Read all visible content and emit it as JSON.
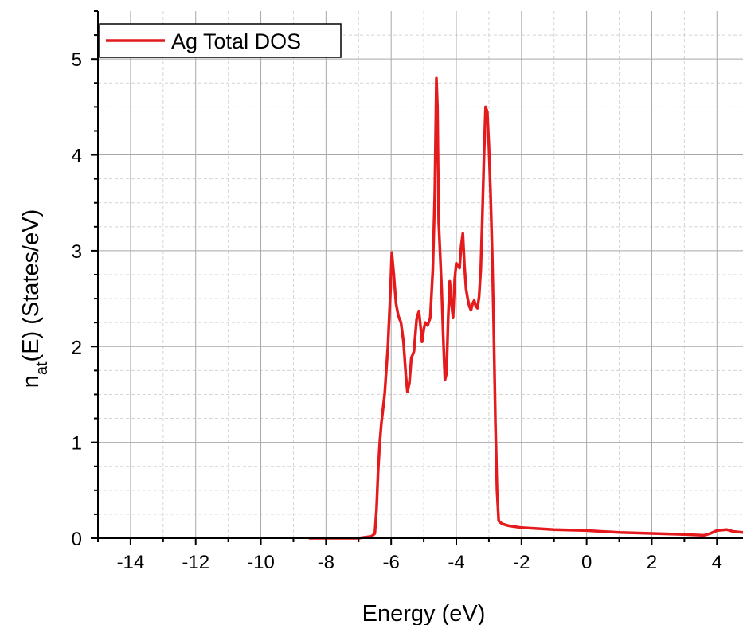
{
  "chart_data": {
    "type": "line",
    "title": "",
    "xlabel": "Energy (eV)",
    "ylabel_main": "n",
    "ylabel_sub": "at",
    "ylabel_rest": "(E) (States/eV)",
    "xlim": [
      -15,
      4.8
    ],
    "ylim": [
      0,
      5.5
    ],
    "xticks": [
      -14,
      -12,
      -10,
      -8,
      -6,
      -4,
      -2,
      0,
      2,
      4
    ],
    "xtick_labels": [
      "-14",
      "-12",
      "-10",
      "-8",
      "-6",
      "-4",
      "-2",
      "0",
      "2",
      "4"
    ],
    "yticks": [
      0,
      1,
      2,
      3,
      4,
      5
    ],
    "ytick_labels": [
      "0",
      "1",
      "2",
      "3",
      "4",
      "5"
    ],
    "grid": true,
    "legend_position": "top-left",
    "series": [
      {
        "name": "Ag Total DOS",
        "color": "#e41a1c",
        "x": [
          -8.5,
          -7.0,
          -6.6,
          -6.5,
          -6.45,
          -6.4,
          -6.35,
          -6.3,
          -6.2,
          -6.1,
          -6.02,
          -5.98,
          -5.92,
          -5.85,
          -5.78,
          -5.7,
          -5.62,
          -5.55,
          -5.5,
          -5.44,
          -5.38,
          -5.3,
          -5.22,
          -5.15,
          -5.1,
          -5.05,
          -5.0,
          -4.95,
          -4.88,
          -4.8,
          -4.72,
          -4.66,
          -4.61,
          -4.58,
          -4.54,
          -4.5,
          -4.45,
          -4.4,
          -4.35,
          -4.3,
          -4.25,
          -4.2,
          -4.15,
          -4.1,
          -4.05,
          -4.0,
          -3.95,
          -3.9,
          -3.85,
          -3.8,
          -3.75,
          -3.7,
          -3.65,
          -3.6,
          -3.55,
          -3.5,
          -3.45,
          -3.4,
          -3.35,
          -3.3,
          -3.25,
          -3.2,
          -3.15,
          -3.1,
          -3.05,
          -3.0,
          -2.95,
          -2.9,
          -2.85,
          -2.8,
          -2.75,
          -2.7,
          -2.6,
          -2.4,
          -2.0,
          -1.5,
          -1.0,
          0.0,
          1.0,
          2.0,
          3.0,
          3.6,
          3.8,
          4.0,
          4.3,
          4.5,
          4.8
        ],
        "y": [
          0.0,
          0.0,
          0.02,
          0.05,
          0.3,
          0.7,
          1.0,
          1.2,
          1.5,
          2.0,
          2.6,
          2.98,
          2.75,
          2.45,
          2.32,
          2.25,
          2.05,
          1.7,
          1.53,
          1.62,
          1.88,
          1.95,
          2.28,
          2.37,
          2.22,
          2.05,
          2.18,
          2.25,
          2.22,
          2.3,
          2.8,
          3.6,
          4.8,
          4.5,
          3.3,
          3.0,
          2.6,
          2.1,
          1.65,
          1.72,
          2.3,
          2.68,
          2.45,
          2.3,
          2.7,
          2.87,
          2.85,
          2.82,
          3.05,
          3.18,
          2.85,
          2.6,
          2.5,
          2.42,
          2.38,
          2.45,
          2.48,
          2.42,
          2.4,
          2.52,
          2.8,
          3.35,
          4.0,
          4.5,
          4.45,
          4.1,
          3.6,
          3.0,
          2.2,
          1.2,
          0.5,
          0.18,
          0.15,
          0.13,
          0.11,
          0.1,
          0.09,
          0.08,
          0.06,
          0.05,
          0.04,
          0.03,
          0.05,
          0.08,
          0.09,
          0.07,
          0.06
        ]
      }
    ]
  }
}
